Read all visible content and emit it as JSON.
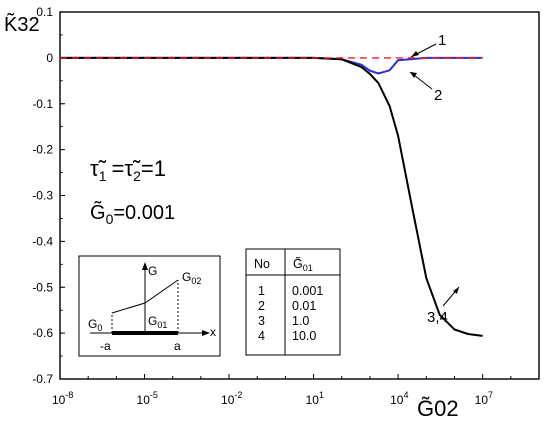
{
  "chart_data": {
    "type": "line",
    "ylabel": "K̃32",
    "xlabel": "G̃02",
    "x_scale": "log",
    "xlim": [
      1e-08,
      1000000000.0
    ],
    "ylim": [
      -0.7,
      0.1
    ],
    "x_ticks": [
      {
        "value": 1e-08,
        "base": "10",
        "exp": "-8"
      },
      {
        "value": 1e-05,
        "base": "10",
        "exp": "-5"
      },
      {
        "value": 0.01,
        "base": "10",
        "exp": "-2"
      },
      {
        "value": 10.0,
        "base": "10",
        "exp": "1"
      },
      {
        "value": 10000.0,
        "base": "10",
        "exp": "4"
      },
      {
        "value": 10000000.0,
        "base": "10",
        "exp": "7"
      }
    ],
    "y_ticks": [
      {
        "value": 0.1,
        "label": "0.1"
      },
      {
        "value": 0,
        "label": "0"
      },
      {
        "value": -0.1,
        "label": "-0.1"
      },
      {
        "value": -0.2,
        "label": "-0.2"
      },
      {
        "value": -0.3,
        "label": "-0.3"
      },
      {
        "value": -0.4,
        "label": "-0.4"
      },
      {
        "value": -0.5,
        "label": "-0.5"
      },
      {
        "value": -0.6,
        "label": "-0.6"
      },
      {
        "value": -0.7,
        "label": "-0.7"
      }
    ],
    "series": [
      {
        "name": "1",
        "color": "#e8201e",
        "dashed": true,
        "x": [
          1e-08,
          100.0,
          10000000.0
        ],
        "y": [
          0,
          0,
          0
        ]
      },
      {
        "name": "2",
        "color": "#2b2bd9",
        "dashed": false,
        "x": [
          1e-08,
          10.0,
          100.0,
          500.0,
          1000.0,
          2000.0,
          5000.0,
          10000.0,
          100000.0,
          10000000.0
        ],
        "y": [
          0,
          0,
          -0.003,
          -0.015,
          -0.028,
          -0.034,
          -0.027,
          -0.005,
          0,
          0
        ]
      },
      {
        "name": "3,4",
        "color": "#000000",
        "dashed": false,
        "x": [
          1e-08,
          10.0,
          100.0,
          500.0,
          1000.0,
          2000.0,
          5000.0,
          10000.0,
          30000.0,
          100000.0,
          300000.0,
          1000000.0,
          3000000.0,
          10000000.0
        ],
        "y": [
          0,
          0,
          -0.003,
          -0.02,
          -0.035,
          -0.055,
          -0.105,
          -0.17,
          -0.32,
          -0.48,
          -0.56,
          -0.592,
          -0.602,
          -0.606
        ]
      }
    ],
    "curve_labels": [
      {
        "text": "1",
        "x": 100000.0,
        "y": 0.02
      },
      {
        "text": "2",
        "x": 100000.0,
        "y": -0.04
      },
      {
        "text": "3,4",
        "x": 30000.0,
        "y": -0.55
      }
    ]
  },
  "annotation": {
    "tau_line_a": "τ̃",
    "tau_sub_1": "1",
    "tau_eq": "=",
    "tau_line_b": "τ̃",
    "tau_sub_2": "2",
    "tau_value": "=1",
    "g0_symbol": "G̃",
    "g0_sub": "0",
    "g0_value": "=0.001"
  },
  "inset": {
    "g_axis_label": "G",
    "x_axis_label": "x",
    "g0_label": "G",
    "g0_sub": "0",
    "g01_label": "G",
    "g01_sub": "01",
    "g02_label": "G",
    "g02_sub": "02",
    "minus_a": "-a",
    "plus_a": "a"
  },
  "table": {
    "header_no": "No",
    "header_g": "G̃",
    "header_g_sub": "01",
    "rows": [
      {
        "no": "1",
        "value": "0.001"
      },
      {
        "no": "2",
        "value": "0.01"
      },
      {
        "no": "3",
        "value": "1.0"
      },
      {
        "no": "4",
        "value": "10.0"
      }
    ]
  }
}
